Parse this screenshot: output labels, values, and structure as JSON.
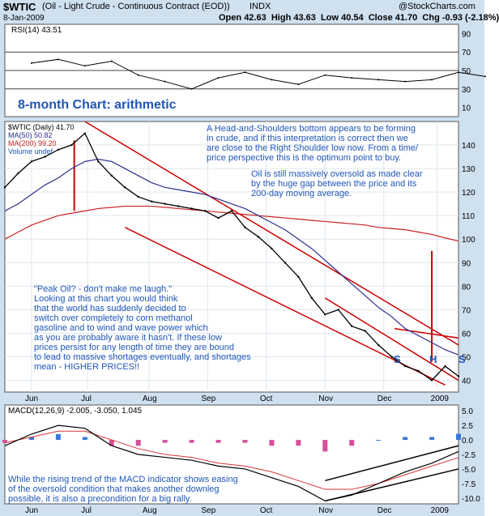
{
  "header": {
    "symbol": "$WTIC",
    "description": "(Oil - Light Crude - Continuous Contract (EOD))",
    "exchange": "INDX",
    "brand": "@StockCharts.com",
    "date": "8-Jan-2009",
    "open_label": "Open",
    "open": "42.63",
    "high_label": "High",
    "high": "43.63",
    "low_label": "Low",
    "low": "40.54",
    "close_label": "Close",
    "close": "41.70",
    "chg_label": "Chg",
    "chg": "-0.93 (-2.18%)"
  },
  "colors": {
    "panel_bg": "#ffffff",
    "frame_bg": "#cfe0ef",
    "price": "#000000",
    "ma50": "#2e2e8c",
    "ma200": "#cc2222",
    "channel": "#cc0000",
    "annotation": "#1f56b8",
    "macd_hist": "#3b78d8",
    "macd_hist_neg": "#d64f9a",
    "rsi_line": "#000000"
  },
  "annotations": {
    "chart_title": "8-month Chart: arithmetic",
    "hs_text": [
      "A Head-and-Shoulders bottom  appears to be forming",
      "in crude, and if this interpretation is correct then we",
      "are close to the Right Shoulder low now. From a time/",
      "price perspective this is the optimum point to buy."
    ],
    "oversold_text": [
      "Oil is still massively oversold as made clear",
      "by the huge gap between the price and its",
      "200-day moving average."
    ],
    "peak_oil_text": [
      "\"Peak Oil? - don't make me laugh.\"",
      "Looking at this chart you would think",
      "that the world has suddenly decided to",
      "switch over completely to corn methanol",
      "gasoline and to wind and wave power which",
      "as you are probably aware it hasn't. If these low",
      "prices persist for any length of time they are bound",
      "to lead to massive shortages eventually, and shortages",
      "mean - HIGHER PRICES!!"
    ],
    "macd_text": [
      "While the rising trend of the MACD indicator shows easing",
      "of the oversold condition that makes another downleg",
      "possible, it is also a precondition for a big rally."
    ],
    "hs_marks": [
      "S",
      "H",
      "S"
    ]
  },
  "chart_data": [
    {
      "type": "line",
      "name": "rsi",
      "legend": [
        "RSI(14) 43.51"
      ],
      "ylim": [
        0,
        100
      ],
      "yticks": [
        "90",
        "70",
        "50",
        "30",
        "10"
      ],
      "yticks_values": [
        90,
        70,
        50,
        30,
        10
      ],
      "reference_lines": [
        70,
        50,
        30
      ],
      "x": [
        0,
        10,
        20,
        30,
        40,
        50,
        60,
        70,
        80,
        90,
        100,
        110,
        120,
        130,
        140,
        150,
        160,
        170
      ],
      "values": [
        58,
        62,
        55,
        60,
        45,
        38,
        30,
        42,
        48,
        40,
        35,
        45,
        42,
        40,
        38,
        40,
        48,
        43.51
      ]
    },
    {
      "type": "line",
      "name": "price",
      "legend": [
        "$WTIC (Daily) 41.70",
        "MA(50) 50.82",
        "MA(200) 99.20",
        "Volume undef"
      ],
      "ylim": [
        35,
        150
      ],
      "yticks": [
        "140",
        "130",
        "120",
        "110",
        "100",
        "90",
        "80",
        "70",
        "60",
        "50",
        "40"
      ],
      "yticks_values": [
        140,
        130,
        120,
        110,
        100,
        90,
        80,
        70,
        60,
        50,
        40
      ],
      "xticks": [
        "Jun",
        "Jul",
        "Aug",
        "Sep",
        "Oct",
        "Nov",
        "Dec",
        "2009"
      ],
      "xticks_pos": [
        0,
        21,
        44,
        66,
        88,
        110,
        132,
        152
      ],
      "xlim": [
        -10,
        160
      ],
      "x": [
        -10,
        -5,
        0,
        5,
        10,
        15,
        20,
        25,
        30,
        35,
        40,
        45,
        50,
        55,
        60,
        65,
        70,
        75,
        80,
        85,
        90,
        95,
        100,
        105,
        110,
        115,
        120,
        125,
        130,
        135,
        140,
        145,
        150,
        155,
        160
      ],
      "values": [
        122,
        128,
        133,
        135,
        138,
        140,
        145,
        133,
        127,
        122,
        118,
        116,
        115,
        114,
        113,
        112,
        109,
        112,
        105,
        101,
        96,
        90,
        84,
        75,
        68,
        70,
        63,
        61,
        55,
        50,
        46,
        44,
        40,
        46,
        41.7
      ],
      "ma50": [
        112,
        115,
        119,
        123,
        126,
        130,
        133,
        134,
        133,
        130,
        127,
        124,
        122,
        121,
        120,
        119,
        117,
        115,
        113,
        110,
        107,
        104,
        100,
        96,
        91,
        86,
        81,
        76,
        71,
        67,
        62,
        59,
        56,
        53,
        50.82
      ],
      "ma200": [
        100,
        103,
        106,
        108,
        110,
        111,
        112,
        113,
        113.5,
        114,
        114,
        114,
        113.5,
        113,
        112.5,
        112,
        111.5,
        111,
        110.5,
        110,
        109.5,
        109,
        108.5,
        108,
        107.5,
        107,
        106.5,
        106,
        105,
        104.5,
        104,
        103,
        102,
        100.5,
        99.2
      ]
    },
    {
      "type": "line",
      "name": "macd",
      "legend": [
        "MACD(12,26,9) -2.005, -3.050, 1.045"
      ],
      "ylim": [
        -11,
        6
      ],
      "yticks": [
        "5.0",
        "2.5",
        "0.0",
        "-2.5",
        "-5.0",
        "-7.5",
        "-10.0"
      ],
      "yticks_values": [
        5,
        2.5,
        0,
        -2.5,
        -5,
        -7.5,
        -10
      ],
      "x": [
        -10,
        0,
        10,
        20,
        30,
        40,
        50,
        60,
        70,
        80,
        90,
        100,
        110,
        120,
        130,
        140,
        150,
        160
      ],
      "macd": [
        -1,
        1,
        2.5,
        2,
        -1,
        -2.5,
        -3,
        -3.5,
        -4.5,
        -5,
        -6.5,
        -8,
        -10.5,
        -9.5,
        -7.5,
        -5.5,
        -4,
        -2.005
      ],
      "signal": [
        -0.5,
        0.5,
        1.5,
        1.5,
        0,
        -1.5,
        -2.5,
        -3,
        -4,
        -4.5,
        -5.5,
        -7,
        -8.5,
        -8.5,
        -7.5,
        -6,
        -4.5,
        -3.05
      ],
      "histogram": [
        -0.5,
        0.5,
        1,
        0.5,
        -1,
        -1,
        -0.5,
        -0.5,
        -0.5,
        -0.5,
        -1,
        -1,
        -2,
        -1,
        0,
        0.5,
        0.5,
        1.045
      ]
    }
  ]
}
